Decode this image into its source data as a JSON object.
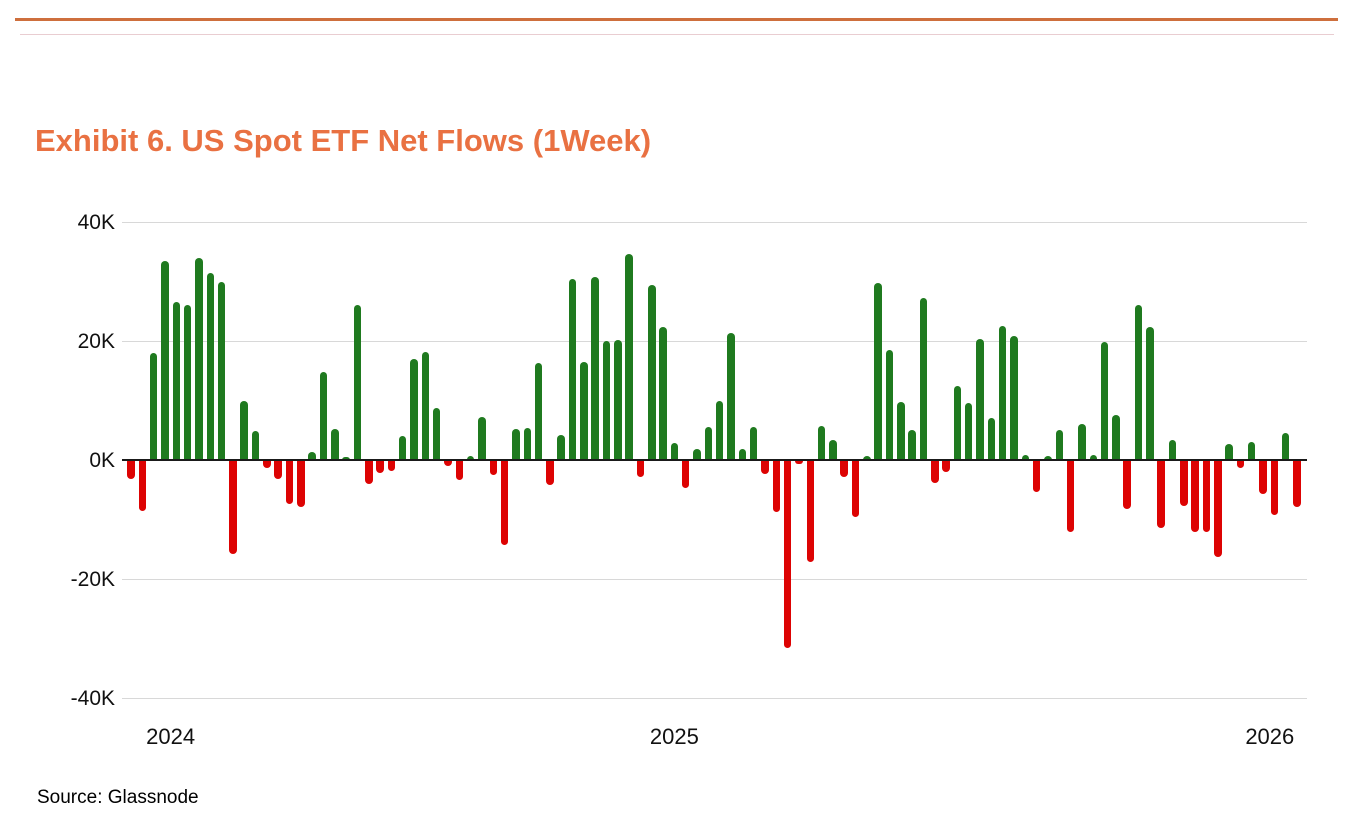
{
  "title": "Exhibit 6. US Spot ETF Net Flows (1Week)",
  "source": "Source: Glassnode",
  "colors": {
    "positive": "#1f7a1f",
    "negative": "#dd0303",
    "title": "#e97142",
    "rule_thick": "#ce6f3d",
    "rule_thin": "#e9cdd1",
    "grid": "#d8d8d8",
    "axis": "#1a1a1a",
    "text": "#111111"
  },
  "chart_data": {
    "type": "bar",
    "title": "Exhibit 6. US Spot ETF Net Flows (1Week)",
    "subtitle": "",
    "unit": "K",
    "xlabel": "",
    "ylabel": "",
    "ylim": [
      -40,
      40
    ],
    "grid": true,
    "legend_position": "none",
    "y_ticks": [
      {
        "label": "40K",
        "value": 40
      },
      {
        "label": "20K",
        "value": 20
      },
      {
        "label": "0K",
        "value": 0
      },
      {
        "label": "-20K",
        "value": -20
      },
      {
        "label": "-40K",
        "value": -40
      }
    ],
    "x_ticks": [
      {
        "label": "2024",
        "bar_index": 4.5
      },
      {
        "label": "2025",
        "bar_index": 49
      },
      {
        "label": "2026",
        "bar_index": 101.6
      }
    ],
    "series_name": "US Spot ETF Net Flows, weekly (K)",
    "values": [
      -3.1,
      -8.4,
      18.0,
      33.5,
      26.5,
      26.0,
      34.0,
      31.5,
      30.0,
      -15.7,
      10.0,
      4.8,
      -1.1,
      -3.1,
      -7.3,
      -7.7,
      1.3,
      14.8,
      5.2,
      0.5,
      26.0,
      -3.9,
      -2.0,
      -1.6,
      4.0,
      17.0,
      18.2,
      8.7,
      -0.8,
      -3.2,
      0.6,
      7.2,
      -2.4,
      -14.1,
      5.2,
      5.4,
      16.3,
      -4.0,
      4.2,
      30.4,
      16.4,
      30.8,
      20.0,
      20.1,
      34.7,
      -2.7,
      29.4,
      22.4,
      2.8,
      -4.5,
      1.9,
      5.5,
      10.0,
      21.3,
      1.9,
      5.5,
      -2.1,
      -8.6,
      -31.5,
      -0.5,
      -16.9,
      5.7,
      3.3,
      -2.6,
      -9.4,
      0.6,
      29.8,
      18.5,
      9.7,
      5.0,
      27.2,
      -3.7,
      -1.9,
      12.5,
      9.6,
      20.4,
      7.0,
      22.5,
      20.9,
      0.9,
      -5.2,
      0.6,
      5.1,
      -12.0,
      6.0,
      0.8,
      19.8,
      7.5,
      -8.0,
      26.0,
      22.3,
      -11.2,
      3.4,
      -7.6,
      -12.0,
      -11.9,
      -16.2,
      2.7,
      -1.1,
      3.1,
      -5.6,
      -9.1,
      4.6,
      -7.8
    ]
  }
}
